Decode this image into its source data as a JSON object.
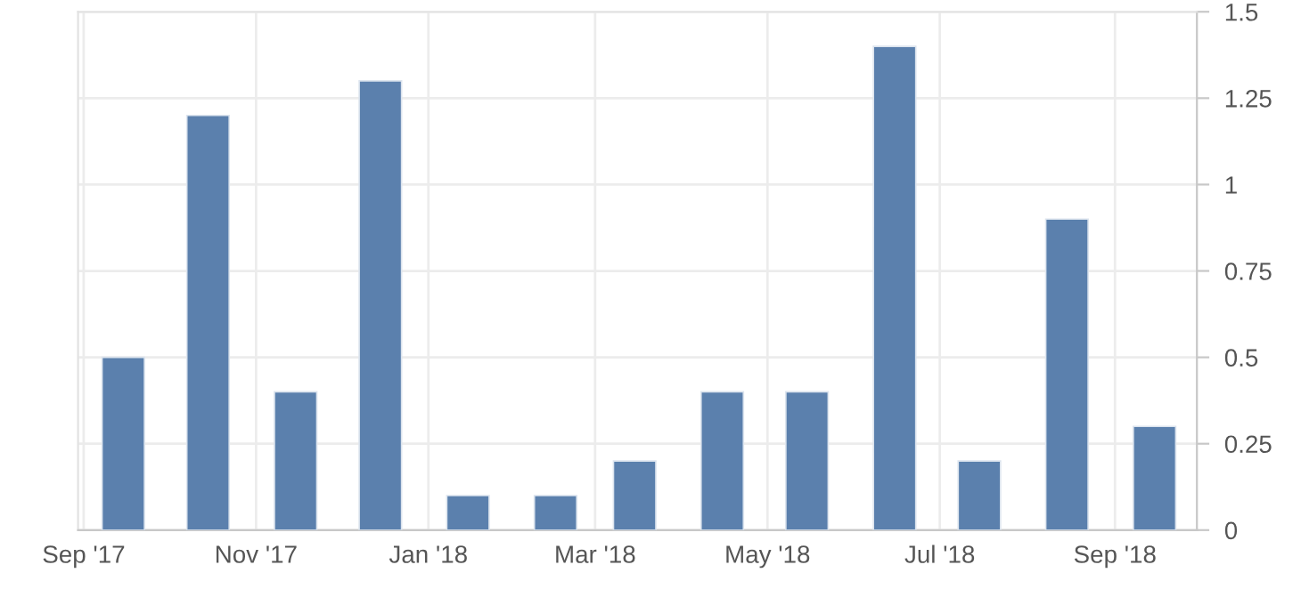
{
  "chart_data": {
    "type": "bar",
    "x": [
      "2017-09-15",
      "2017-10-15",
      "2017-11-15",
      "2017-12-15",
      "2018-01-15",
      "2018-02-15",
      "2018-03-15",
      "2018-04-15",
      "2018-05-15",
      "2018-06-15",
      "2018-07-15",
      "2018-08-15",
      "2018-09-15"
    ],
    "values": [
      0.5,
      1.2,
      0.4,
      1.3,
      0.1,
      0.1,
      0.2,
      0.4,
      0.4,
      1.4,
      0.2,
      0.9,
      0.3
    ],
    "color": "#5b80ad",
    "xlim": [
      "2017-08-30",
      "2018-09-30"
    ],
    "xticks": [
      {
        "value": "2017-09-01",
        "label": "Sep '17"
      },
      {
        "value": "2017-11-01",
        "label": "Nov '17"
      },
      {
        "value": "2018-01-01",
        "label": "Jan '18"
      },
      {
        "value": "2018-03-01",
        "label": "Mar '18"
      },
      {
        "value": "2018-05-01",
        "label": "May '18"
      },
      {
        "value": "2018-07-01",
        "label": "Jul '18"
      },
      {
        "value": "2018-09-01",
        "label": "Sep '18"
      }
    ],
    "ylim": [
      0,
      1.5
    ],
    "yticks": [
      0,
      {
        "value": 0.25,
        "label": "0.25"
      },
      {
        "value": 0.5,
        "label": "0.5"
      },
      {
        "value": 0.75,
        "label": "0.75"
      },
      1,
      {
        "value": 1.25,
        "label": "1.25"
      },
      {
        "value": 1.5,
        "label": "1.5"
      }
    ],
    "grid": true
  }
}
